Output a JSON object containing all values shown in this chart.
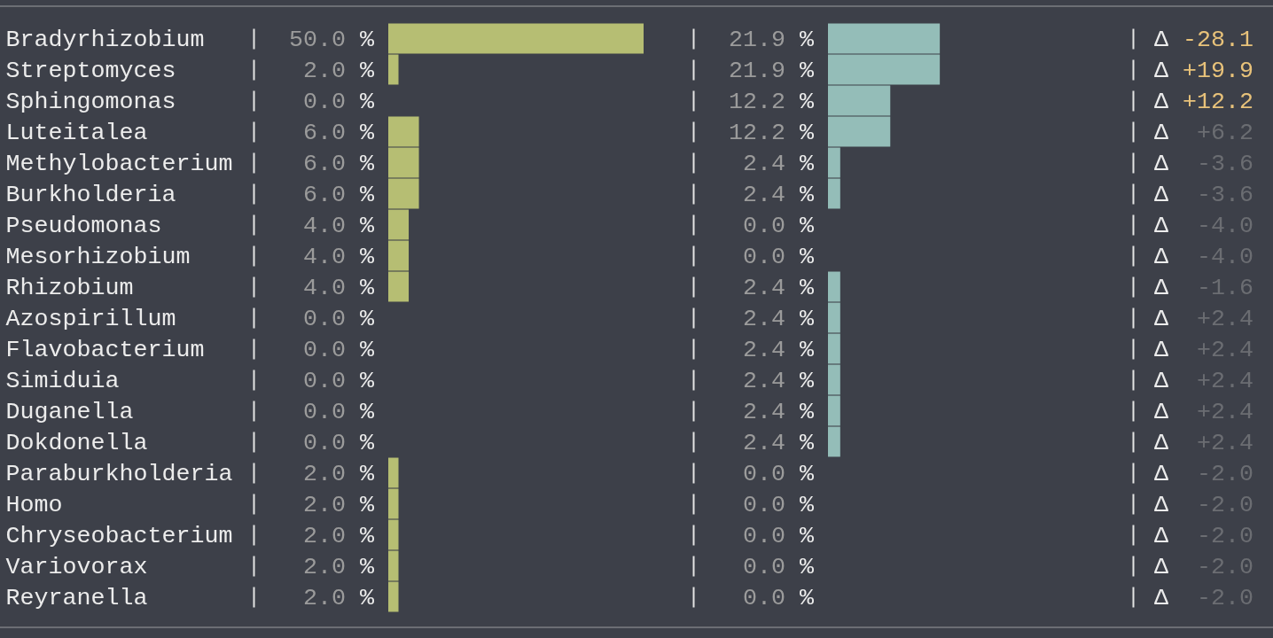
{
  "chart_data": [
    {
      "type": "bar",
      "orientation": "horizontal",
      "categories": [
        "Bradyrhizobium",
        "Streptomyces",
        "Sphingomonas",
        "Luteitalea",
        "Methylobacterium",
        "Burkholderia",
        "Pseudomonas",
        "Mesorhizobium",
        "Rhizobium",
        "Azospirillum",
        "Flavobacterium",
        "Simiduia",
        "Duganella",
        "Dokdonella",
        "Paraburkholderia",
        "Homo",
        "Chryseobacterium",
        "Variovorax",
        "Reyranella"
      ],
      "values": [
        50,
        2,
        0,
        6,
        6,
        6,
        4,
        4,
        4,
        0,
        0,
        0,
        0,
        0,
        2,
        2,
        2,
        2,
        2
      ],
      "color": "#b6be73",
      "value_labels": [
        "50.0 %",
        "2.0 %",
        "0.0 %",
        "6.0 %",
        "6.0 %",
        "6.0 %",
        "4.0 %",
        "4.0 %",
        "4.0 %",
        "0.0 %",
        "0.0 %",
        "0.0 %",
        "0.0 %",
        "0.0 %",
        "2.0 %",
        "2.0 %",
        "2.0 %",
        "2.0 %",
        "2.0 %"
      ],
      "tick_labels": "y"
    },
    {
      "type": "bar",
      "orientation": "horizontal",
      "categories": [
        null,
        null,
        null,
        null,
        null,
        null,
        null,
        null,
        null,
        null,
        null,
        null,
        null,
        null,
        null,
        null,
        null,
        null,
        null
      ],
      "values": [
        21.9,
        21.9,
        12.2,
        12.2,
        2.4,
        2.4,
        0,
        0,
        2.4,
        2.4,
        2.4,
        2.4,
        2.4,
        2.4,
        0,
        0,
        0,
        0,
        0
      ],
      "color": "#94bdb8",
      "value_labels": [
        "21.9 %",
        "21.9 %",
        "12.2 %",
        "12.2 %",
        "2.4 %",
        "2.4 %",
        "0.0 %",
        "0.0 %",
        "2.4 %",
        "2.4 %",
        "2.4 %",
        "2.4 %",
        "2.4 %",
        "2.4 %",
        "0.0 %",
        "0.0 %",
        "0.0 %",
        "0.0 %",
        "0.0 %"
      ]
    },
    {
      "type": "other",
      "annotations": [
        "Δ -28.1",
        "Δ +19.9",
        "Δ +12.2",
        "Δ +6.2",
        "Δ -3.6",
        "Δ -3.6",
        "Δ -4.0",
        "Δ -4.0",
        "Δ -1.6",
        "Δ +2.4",
        "Δ +2.4",
        "Δ +2.4",
        "Δ +2.4",
        "Δ +2.4",
        "Δ -2.0",
        "Δ -2.0",
        "Δ -2.0",
        "Δ -2.0",
        "Δ -2.0"
      ],
      "colors": [
        "#e8c27a",
        "#e8c27a",
        "#e8c27a",
        "#6b6d72",
        "#6b6d72",
        "#6b6d72",
        "#6b6d72",
        "#6b6d72",
        "#6b6d72",
        "#6b6d72",
        "#6b6d72",
        "#6b6d72",
        "#6b6d72",
        "#6b6d72",
        "#6b6d72",
        "#6b6d72",
        "#6b6d72",
        "#6b6d72",
        "#6b6d72"
      ]
    }
  ]
}
